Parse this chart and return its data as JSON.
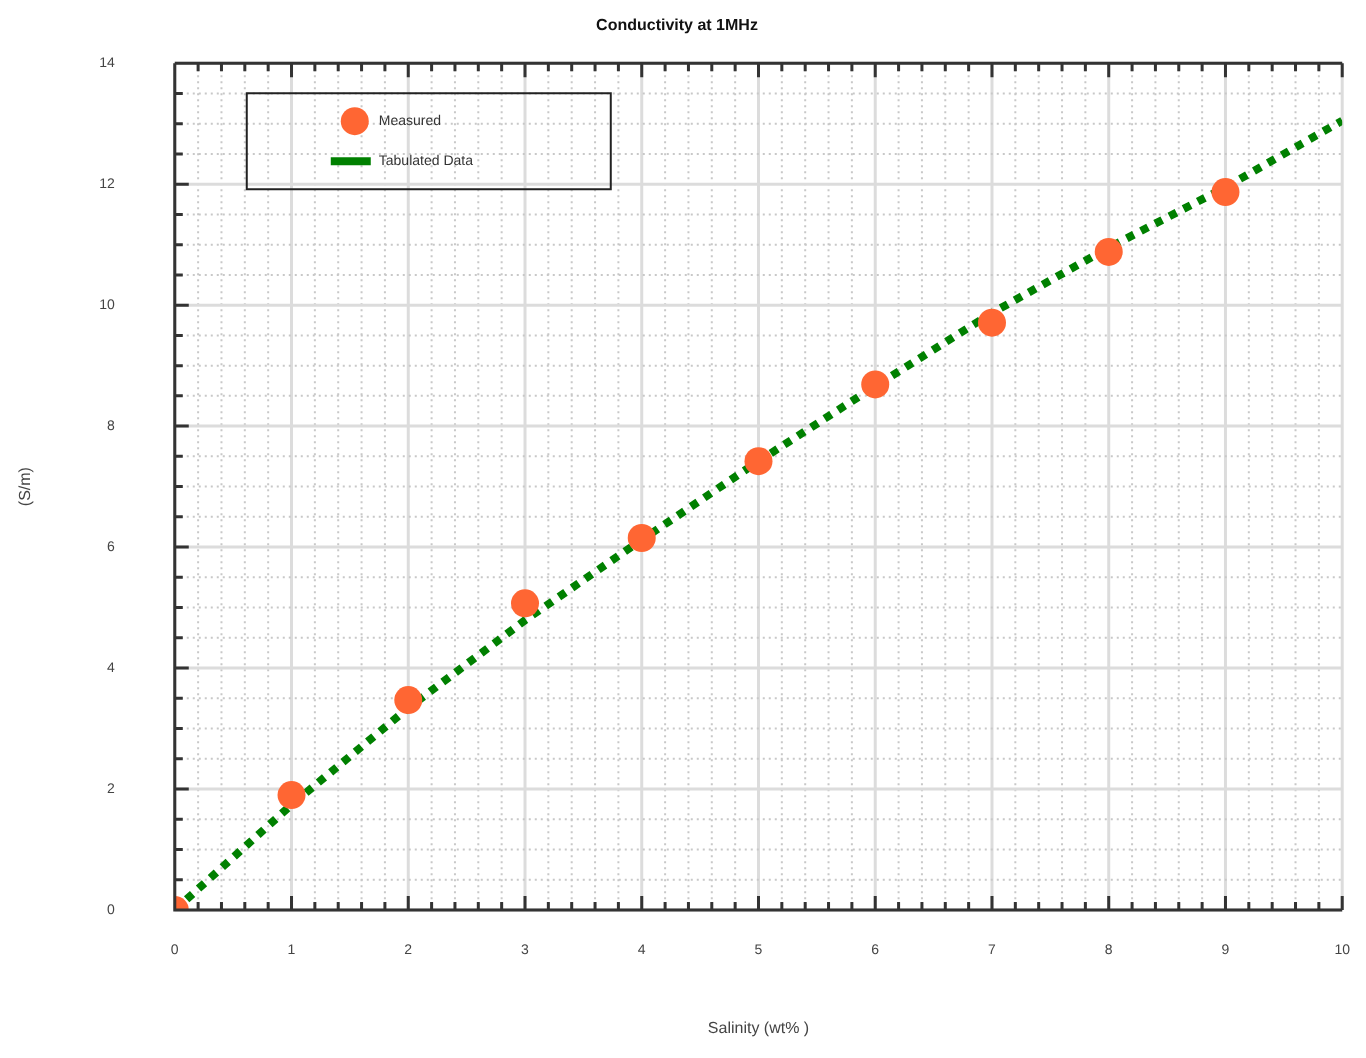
{
  "chart_data": {
    "type": "scatter",
    "title": "Conductivity at 1MHz",
    "xlabel": "Salinity (wt% )",
    "ylabel": "(S/m)",
    "xlim": [
      0,
      10
    ],
    "ylim": [
      0,
      14
    ],
    "xticks": [
      0,
      {
        "value": 0.2,
        "label": null
      },
      {
        "value": 0.4,
        "label": null
      },
      {
        "value": 0.6,
        "label": null
      },
      {
        "value": 0.8,
        "label": null
      },
      1,
      {
        "value": 1.2,
        "label": null
      },
      {
        "value": 1.4,
        "label": null
      },
      {
        "value": 1.6,
        "label": null
      },
      {
        "value": 1.8,
        "label": null
      },
      2,
      {
        "value": 2.2,
        "label": null
      },
      {
        "value": 2.4,
        "label": null
      },
      {
        "value": 2.6,
        "label": null
      },
      {
        "value": 2.8,
        "label": null
      },
      3,
      {
        "value": 3.2,
        "label": null
      },
      {
        "value": 3.4,
        "label": null
      },
      {
        "value": 3.6,
        "label": null
      },
      {
        "value": 3.8,
        "label": null
      },
      4,
      {
        "value": 4.2,
        "label": null
      },
      {
        "value": 4.4,
        "label": null
      },
      {
        "value": 4.6,
        "label": null
      },
      {
        "value": 4.8,
        "label": null
      },
      5,
      {
        "value": 5.2,
        "label": null
      },
      {
        "value": 5.4,
        "label": null
      },
      {
        "value": 5.6,
        "label": null
      },
      {
        "value": 5.8,
        "label": null
      },
      6,
      {
        "value": 6.2,
        "label": null
      },
      {
        "value": 6.4,
        "label": null
      },
      {
        "value": 6.6,
        "label": null
      },
      {
        "value": 6.8,
        "label": null
      },
      7,
      {
        "value": 7.2,
        "label": null
      },
      {
        "value": 7.4,
        "label": null
      },
      {
        "value": 7.6,
        "label": null
      },
      {
        "value": 7.8,
        "label": null
      },
      8,
      {
        "value": 8.2,
        "label": null
      },
      {
        "value": 8.4,
        "label": null
      },
      {
        "value": 8.6,
        "label": null
      },
      {
        "value": 8.8,
        "label": null
      },
      9,
      {
        "value": 9.2,
        "label": null
      },
      {
        "value": 9.4,
        "label": null
      },
      {
        "value": 9.6,
        "label": null
      },
      {
        "value": 9.8,
        "label": null
      },
      10
    ],
    "yticks": [
      0,
      {
        "value": 0.5,
        "label": null
      },
      {
        "value": 1,
        "label": null
      },
      {
        "value": 1.5,
        "label": null
      },
      2,
      {
        "value": 2.5,
        "label": null
      },
      {
        "value": 3,
        "label": null
      },
      {
        "value": 3.5,
        "label": null
      },
      4,
      {
        "value": 4.5,
        "label": null
      },
      {
        "value": 5,
        "label": null
      },
      {
        "value": 5.5,
        "label": null
      },
      6,
      {
        "value": 6.5,
        "label": null
      },
      {
        "value": 7,
        "label": null
      },
      {
        "value": 7.5,
        "label": null
      },
      8,
      {
        "value": 8.5,
        "label": null
      },
      {
        "value": 9,
        "label": null
      },
      {
        "value": 9.5,
        "label": null
      },
      10,
      {
        "value": 10.5,
        "label": null
      },
      {
        "value": 11,
        "label": null
      },
      {
        "value": 11.5,
        "label": null
      },
      12,
      {
        "value": 12.5,
        "label": null
      },
      {
        "value": 13,
        "label": null
      },
      {
        "value": 13.5,
        "label": null
      },
      14
    ],
    "grid": true,
    "legend": "top left",
    "series": [
      {
        "name": "Measured",
        "type": "scatter",
        "marker": "circle",
        "color": "#ff6633",
        "x": [
          0,
          1,
          2,
          3,
          4,
          5,
          6,
          7,
          8,
          9
        ],
        "values": [
          0,
          1.9,
          3.47,
          5.07,
          6.15,
          7.42,
          8.69,
          9.71,
          10.88,
          11.87
        ]
      },
      {
        "name": "Tabulated Data",
        "type": "line",
        "line_style": "dotted",
        "marker": "none",
        "color": "#008000",
        "x": [
          0,
          1,
          2,
          3,
          4,
          5,
          6,
          7,
          8,
          9,
          10
        ],
        "values": [
          0,
          1.74,
          3.34,
          4.79,
          6.12,
          7.42,
          8.66,
          9.87,
          10.95,
          11.95,
          13.05
        ]
      }
    ]
  }
}
